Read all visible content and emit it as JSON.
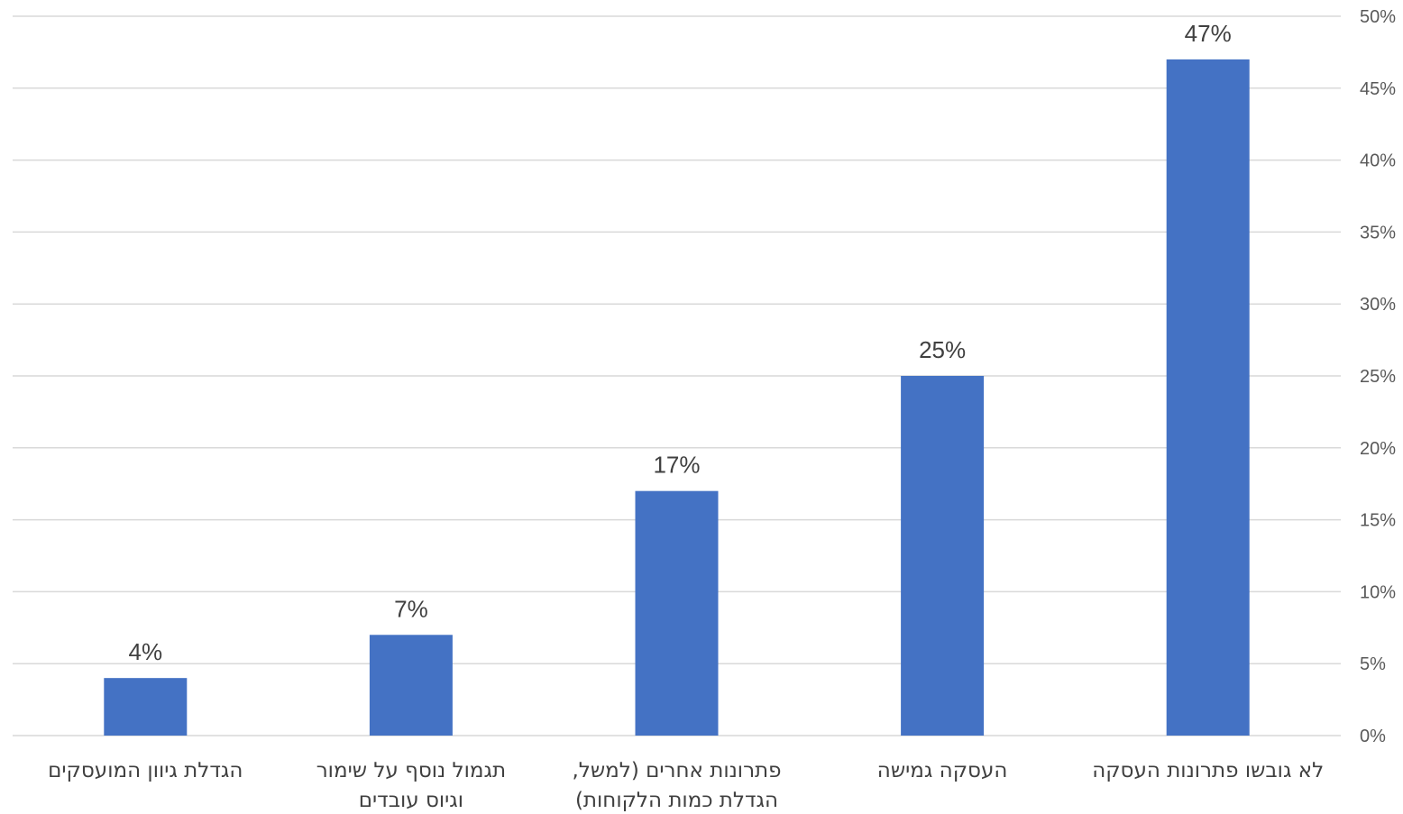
{
  "chart_data": {
    "type": "bar",
    "categories": [
      [
        "לא גובשו פתרונות העסקה"
      ],
      [
        "העסקה גמישה"
      ],
      [
        "פתרונות אחרים (למשל,",
        "הגדלת כמות הלקוחות)"
      ],
      [
        "תגמול נוסף על שימור",
        "וגיוס עובדים"
      ],
      [
        "הגדלת גיוון המועסקים"
      ]
    ],
    "values": [
      47,
      25,
      17,
      7,
      4
    ],
    "value_labels": [
      "47%",
      "25%",
      "17%",
      "7%",
      "4%"
    ],
    "y_ticks": [
      "0%",
      "5%",
      "10%",
      "15%",
      "20%",
      "25%",
      "30%",
      "35%",
      "40%",
      "45%",
      "50%"
    ],
    "ylim": [
      0,
      50
    ],
    "y_axis_position": "right",
    "category_order": "right-to-left",
    "grid": true,
    "bar_color": "#4472C4",
    "grid_color": "#d9d9d9",
    "title": "",
    "xlabel": "",
    "ylabel": ""
  }
}
